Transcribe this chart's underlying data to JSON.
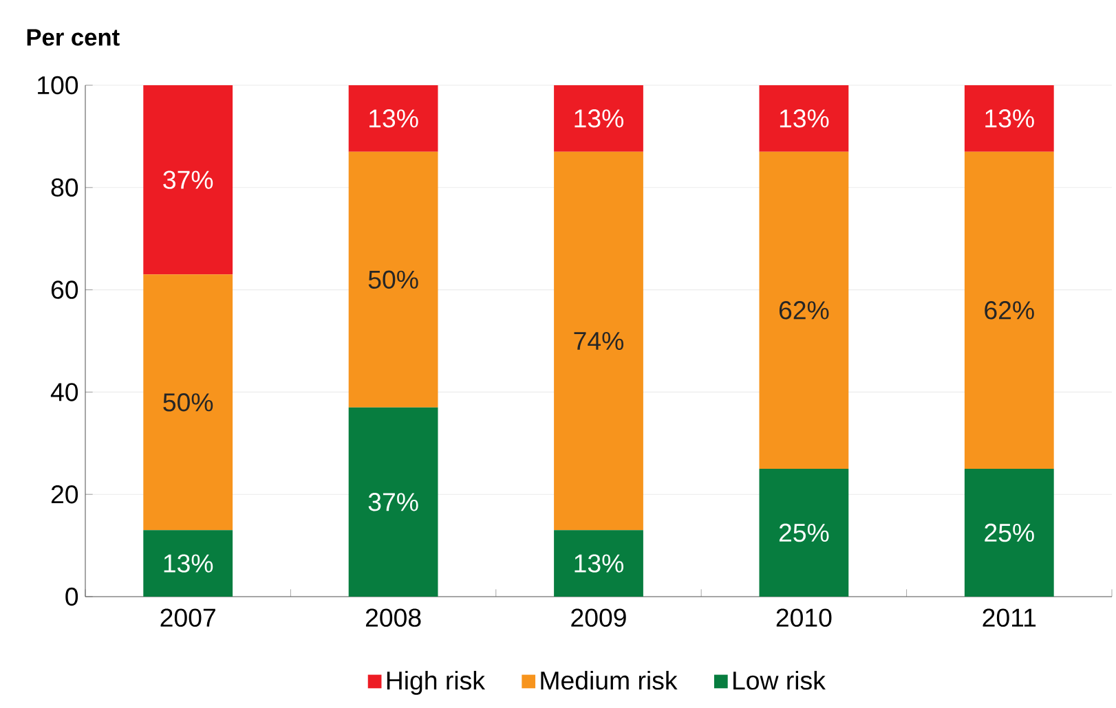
{
  "chart_data": {
    "type": "bar",
    "stacked": true,
    "ylabel": "Per cent",
    "categories": [
      "2007",
      "2008",
      "2009",
      "2010",
      "2011"
    ],
    "series": [
      {
        "name": "Low risk",
        "color": "#077d3f",
        "values": [
          13,
          37,
          13,
          25,
          25
        ],
        "value_labels": [
          "13%",
          "37%",
          "13%",
          "25%",
          "25%"
        ]
      },
      {
        "name": "Medium risk",
        "color": "#f7941d",
        "values": [
          50,
          50,
          74,
          62,
          62
        ],
        "value_labels": [
          "50%",
          "50%",
          "74%",
          "62%",
          "62%"
        ]
      },
      {
        "name": "High risk",
        "color": "#ed1c24",
        "values": [
          37,
          13,
          13,
          13,
          13
        ],
        "value_labels": [
          "37%",
          "13%",
          "13%",
          "13%",
          "13%"
        ]
      }
    ],
    "ylim": [
      0,
      100
    ],
    "yticks": [
      0,
      20,
      40,
      60,
      80,
      100
    ],
    "grid": "y",
    "legend": "bottom"
  }
}
